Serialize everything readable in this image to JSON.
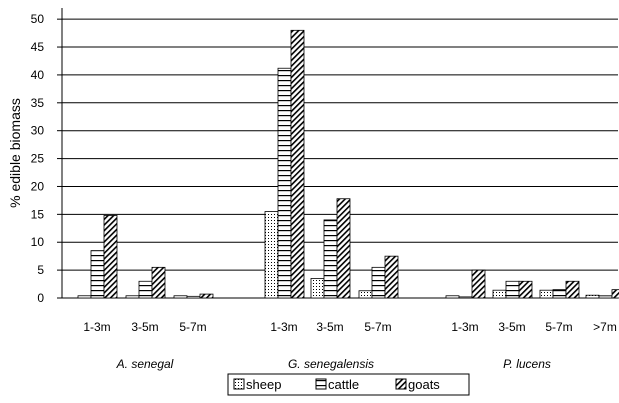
{
  "chart_data": {
    "type": "bar",
    "ylabel": "% edible biomass",
    "xlabel": "",
    "ylim": [
      0,
      52
    ],
    "yticks": [
      0,
      5,
      10,
      15,
      20,
      25,
      30,
      35,
      40,
      45,
      50
    ],
    "ytick_labels": [
      "0",
      "5",
      "10",
      "15",
      "20",
      "25",
      "30",
      "35",
      "40",
      "45",
      "50"
    ],
    "grid": "horizontal",
    "legend_position": "bottom",
    "groups": [
      {
        "name": "A. senegal",
        "categories": [
          "1-3m",
          "3-5m",
          "5-7m"
        ]
      },
      {
        "name": "G. senegalensis",
        "categories": [
          "1-3m",
          "3-5m",
          "5-7m"
        ]
      },
      {
        "name": "P. lucens",
        "categories": [
          "1-3m",
          "3-5m",
          "5-7m",
          ">7m"
        ]
      }
    ],
    "series": [
      {
        "name": "sheep",
        "pattern": "dots",
        "values": [
          0.4,
          0.4,
          0.4,
          15.5,
          3.5,
          1.3,
          0.4,
          1.4,
          1.4,
          0.5
        ]
      },
      {
        "name": "cattle",
        "pattern": "horizontal",
        "values": [
          8.5,
          3.0,
          0.3,
          41.2,
          14.0,
          5.5,
          0.2,
          3.0,
          1.5,
          0.4
        ]
      },
      {
        "name": "goats",
        "pattern": "diagonal",
        "values": [
          14.8,
          5.5,
          0.7,
          48.0,
          17.8,
          7.5,
          5.0,
          3.0,
          3.0,
          1.5
        ]
      }
    ]
  },
  "colors": {
    "background": "#ffffff",
    "axis": "#000000",
    "grid": "#000000",
    "bar_fill": "#ffffff",
    "pattern": "#000000"
  }
}
